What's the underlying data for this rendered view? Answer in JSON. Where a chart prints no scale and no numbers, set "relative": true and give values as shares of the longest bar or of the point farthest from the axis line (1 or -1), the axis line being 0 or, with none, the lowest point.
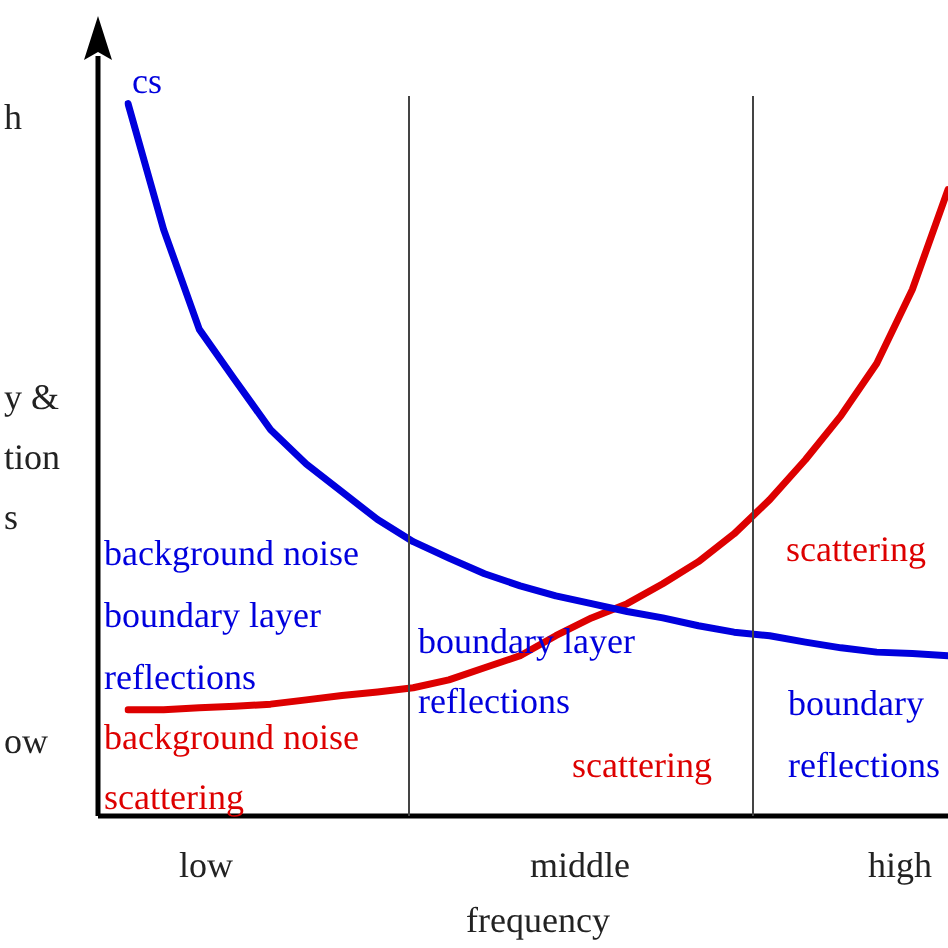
{
  "chart_data": {
    "type": "line",
    "relative": true,
    "xlabel": "frequency",
    "grid": false,
    "legend": false,
    "marker": "none",
    "categories": [
      null,
      null,
      null,
      null,
      null,
      null,
      null,
      null,
      null,
      null,
      null,
      null,
      null,
      null,
      null,
      null,
      null,
      null,
      null,
      null,
      null,
      null,
      null,
      null
    ],
    "series": [
      {
        "color": "#0000dd",
        "values": [
          1,
          0.823,
          0.683,
          0.612,
          0.542,
          0.494,
          0.455,
          0.416,
          0.385,
          0.362,
          0.34,
          0.323,
          0.309,
          0.298,
          0.287,
          0.278,
          0.267,
          0.258,
          0.253,
          0.244,
          0.236,
          0.23,
          0.228,
          0.225
        ]
      },
      {
        "color": "#dd0000",
        "values": [
          0.149,
          0.149,
          0.152,
          0.154,
          0.157,
          0.163,
          0.169,
          0.174,
          0.18,
          0.191,
          0.208,
          0.225,
          0.253,
          0.278,
          0.298,
          0.326,
          0.357,
          0.396,
          0.444,
          0.5,
          0.562,
          0.635,
          0.739,
          0.879
        ]
      }
    ],
    "annotations": [
      "cs",
      "background noise",
      "boundary layer",
      "reflections",
      "boundary layer",
      "reflections",
      "boundary",
      "reflections",
      "background noise",
      "scattering",
      "scattering",
      "scattering",
      "h",
      "y &",
      "tion",
      "s",
      "ow",
      "low",
      "middle",
      "high"
    ]
  }
}
